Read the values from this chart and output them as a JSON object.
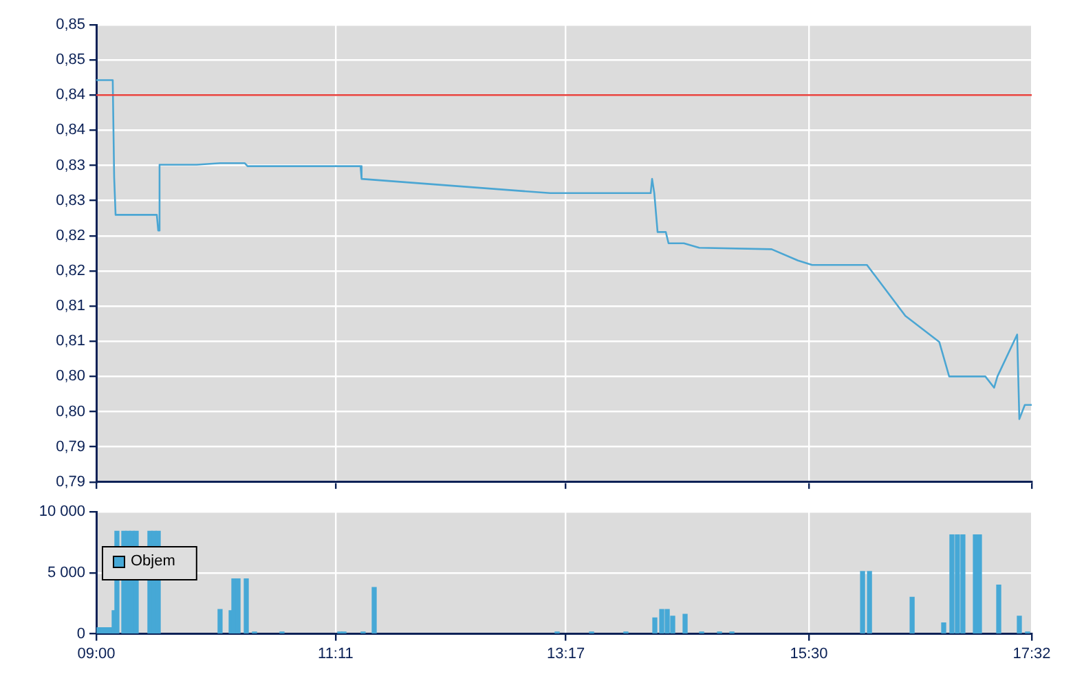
{
  "chart_data": [
    {
      "type": "line",
      "series": [
        {
          "color": "#4ba6d3",
          "x": [
            9.0,
            9.15,
            9.163,
            9.176,
            9.552,
            9.565,
            9.577,
            9.916,
            10.13,
            10.355,
            10.38,
            11.41,
            11.42,
            13.14,
            14.057,
            14.07,
            14.09,
            14.12,
            14.195,
            14.22,
            14.36,
            14.5,
            15.16,
            15.4,
            15.53,
            16.03,
            16.38,
            16.69,
            16.78,
            17.11,
            17.19,
            17.22,
            17.4,
            17.42,
            17.47,
            17.533
          ],
          "values": [
            0.8437,
            0.8437,
            0.8307,
            0.8257,
            0.8257,
            0.8236,
            0.8324,
            0.8324,
            0.8326,
            0.8326,
            0.8322,
            0.8322,
            0.8305,
            0.8286,
            0.8286,
            0.8305,
            0.8286,
            0.8234,
            0.8234,
            0.8219,
            0.8219,
            0.8213,
            0.8211,
            0.8196,
            0.819,
            0.819,
            0.8122,
            0.8087,
            0.8041,
            0.8041,
            0.8026,
            0.8041,
            0.8097,
            0.7984,
            0.8003,
            0.8003
          ]
        }
      ],
      "xlim": [
        9.0,
        17.533
      ],
      "xticks": [
        {
          "value": 9.0,
          "label": null
        },
        {
          "value": 11.183,
          "label": null
        },
        {
          "value": 13.283,
          "label": null
        },
        {
          "value": 15.5,
          "label": null
        },
        {
          "value": 17.533,
          "label": null
        }
      ],
      "ylim": [
        0.79,
        0.8511
      ],
      "yticks": [
        {
          "value": 0.79,
          "label": "0,79"
        },
        {
          "value": 0.7947,
          "label": "0,79"
        },
        {
          "value": 0.7994,
          "label": "0,80"
        },
        {
          "value": 0.8041,
          "label": "0,80"
        },
        {
          "value": 0.8088,
          "label": "0,81"
        },
        {
          "value": 0.8135,
          "label": "0,81"
        },
        {
          "value": 0.8182,
          "label": "0,82"
        },
        {
          "value": 0.8229,
          "label": "0,82"
        },
        {
          "value": 0.8276,
          "label": "0,83"
        },
        {
          "value": 0.8323,
          "label": "0,83"
        },
        {
          "value": 0.837,
          "label": "0,84"
        },
        {
          "value": 0.8417,
          "label": "0,84"
        },
        {
          "value": 0.8464,
          "label": "0,85"
        },
        {
          "value": 0.8511,
          "label": "0,85"
        }
      ],
      "ref_lines": [
        {
          "axis": "y",
          "value": 0.8417,
          "color": "#e8413c"
        }
      ],
      "grid": true,
      "tick_labels": "y"
    },
    {
      "type": "bar",
      "series": [
        {
          "name": "Objem",
          "color": "#46a8d6",
          "x": [
            9.025,
            9.063,
            9.1,
            9.138,
            9.163,
            9.188,
            9.251,
            9.289,
            9.326,
            9.364,
            9.489,
            9.527,
            9.565,
            10.129,
            10.23,
            10.255,
            10.293,
            10.368,
            10.443,
            10.694,
            11.221,
            11.259,
            11.434,
            11.535,
            13.204,
            13.518,
            13.831,
            14.095,
            14.158,
            14.208,
            14.258,
            14.371,
            14.522,
            14.685,
            14.798,
            15.99,
            16.053,
            16.442,
            16.73,
            16.805,
            16.855,
            16.905,
            17.019,
            17.056,
            17.232,
            17.42,
            17.495
          ],
          "values": [
            500,
            500,
            500,
            500,
            1900,
            8400,
            8400,
            8400,
            8400,
            8400,
            8400,
            8400,
            8400,
            2000,
            1900,
            4500,
            4500,
            4500,
            150,
            150,
            150,
            150,
            150,
            3800,
            150,
            150,
            150,
            1300,
            2000,
            2000,
            1450,
            1600,
            150,
            150,
            150,
            5100,
            5100,
            3000,
            900,
            8100,
            8100,
            8100,
            8100,
            8100,
            4000,
            1450,
            150
          ]
        }
      ],
      "xlim": [
        9.0,
        17.533
      ],
      "xticks": [
        {
          "value": 9.0,
          "label": "09:00"
        },
        {
          "value": 11.183,
          "label": "11:11"
        },
        {
          "value": 13.283,
          "label": "13:17"
        },
        {
          "value": 15.5,
          "label": "15:30"
        },
        {
          "value": 17.533,
          "label": "17:32"
        }
      ],
      "ylim": [
        0,
        10000
      ],
      "yticks": [
        {
          "value": 0,
          "label": "0"
        },
        {
          "value": 5000,
          "label": "5 000"
        },
        {
          "value": 10000,
          "label": "10 000"
        }
      ],
      "grid": true,
      "legend": "top left"
    }
  ]
}
